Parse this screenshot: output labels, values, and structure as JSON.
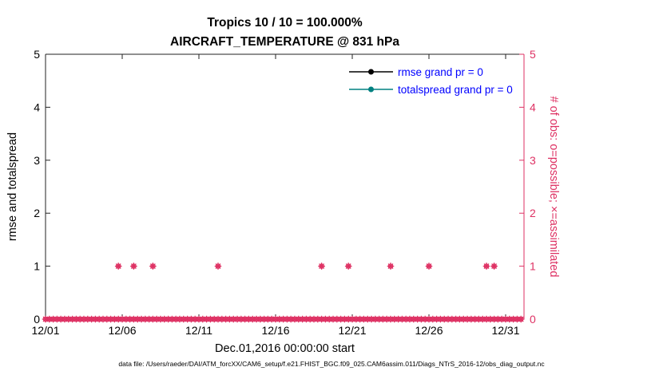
{
  "figure": {
    "title_line1": "Tropics 10 / 10 = 100.000%",
    "title_line2": "AIRCRAFT_TEMPERATURE @ 831 hPa",
    "caption": "data file: /Users/raeder/DAI/ATM_forcXX/CAM6_setup/f.e21.FHIST_BGC.f09_025.CAM6assim.011/Diags_NTrS_2016-12/obs_diag_output.nc",
    "background": "#ffffff"
  },
  "legend": {
    "text_color": "#0000ff",
    "items": [
      {
        "label": "rmse grand pr = 0",
        "color": "#000000"
      },
      {
        "label": "totalspread grand pr = 0",
        "color": "#008080"
      }
    ]
  },
  "axes": {
    "x": {
      "label": "Dec.01,2016 00:00:00 start",
      "tick_labels": [
        "12/01",
        "12/06",
        "12/11",
        "12/16",
        "12/21",
        "12/26",
        "12/31"
      ],
      "tick_days": [
        1,
        6,
        11,
        16,
        21,
        26,
        31
      ],
      "range_days": [
        1,
        32.2
      ]
    },
    "left": {
      "label": "rmse and totalspread",
      "tick_labels": [
        "0",
        "1",
        "2",
        "3",
        "4",
        "5"
      ],
      "range": [
        0,
        5
      ],
      "color": "#000000"
    },
    "right": {
      "label": "# of obs: o=possible; ×=assimilated",
      "tick_labels": [
        "0",
        "1",
        "2",
        "3",
        "4",
        "5"
      ],
      "range": [
        0,
        5
      ],
      "color": "#de3163"
    }
  },
  "chart_data": {
    "type": "scatter",
    "title": "Tropics 10 / 10 = 100.000% | AIRCRAFT_TEMPERATURE @ 831 hPa",
    "xlabel": "Dec.01,2016 00:00:00 start",
    "ylabel": "rmse and totalspread",
    "ylabel_right": "# of obs: o=possible; ×=assimilated",
    "x_unit": "day of Dec 2016",
    "xlim_days": [
      1,
      32.2
    ],
    "ylim": [
      0,
      5
    ],
    "grid": false,
    "legend_position": "top-right-inside",
    "series": [
      {
        "name": "rmse grand pr = 0",
        "type": "line",
        "color": "#000000",
        "points": []
      },
      {
        "name": "totalspread grand pr = 0",
        "type": "line",
        "color": "#008080",
        "points": []
      },
      {
        "name": "# of obs (o=possible, x=assimilated)",
        "type": "scatter",
        "marker": "circle+asterisk",
        "color": "#de3163",
        "zero_count_run": {
          "start_day": 1.0,
          "end_day": 32.0,
          "step_days": 0.25,
          "value": 0
        },
        "one_count_days": [
          5.75,
          6.75,
          8.0,
          12.25,
          19.0,
          20.75,
          23.5,
          26.0,
          29.75,
          30.25
        ],
        "one_count_value": 1
      }
    ]
  }
}
